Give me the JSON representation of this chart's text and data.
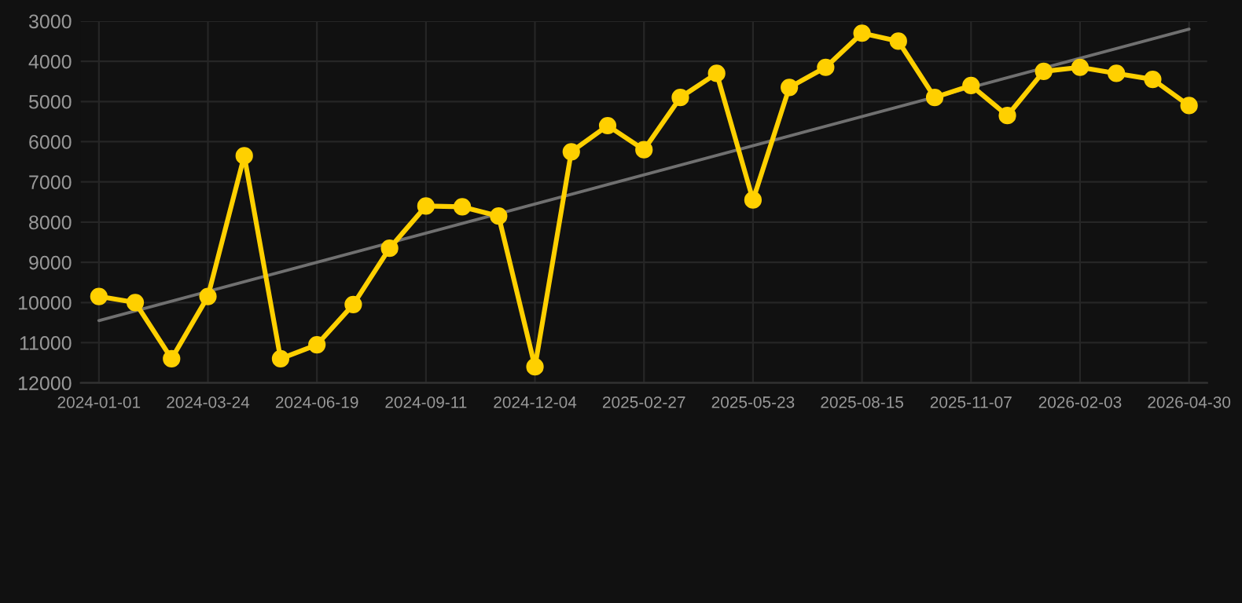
{
  "chart_data": {
    "type": "line",
    "categories": [
      "2024-01-01",
      null,
      null,
      "2024-03-24",
      null,
      null,
      "2024-06-19",
      null,
      null,
      "2024-09-11",
      null,
      null,
      "2024-12-04",
      null,
      null,
      "2025-02-27",
      null,
      null,
      "2025-05-23",
      null,
      null,
      "2025-08-15",
      null,
      null,
      "2025-11-07",
      null,
      null,
      "2026-02-03",
      null,
      null,
      "2026-04-30"
    ],
    "series": [
      {
        "color": "#ffd000",
        "marker": "circle",
        "values": [
          9850,
          10000,
          11400,
          9850,
          6350,
          11400,
          11050,
          10050,
          8650,
          7600,
          7620,
          7850,
          11600,
          6250,
          5600,
          6200,
          4900,
          4300,
          7450,
          4650,
          4150,
          3300,
          3500,
          4900,
          4600,
          5350,
          4250,
          4150,
          4300,
          4450,
          5100
        ]
      },
      {
        "type": "line",
        "color": "#707070",
        "marker": "none",
        "values": [
          10450,
          null,
          null,
          null,
          null,
          null,
          null,
          null,
          null,
          null,
          null,
          null,
          null,
          null,
          null,
          null,
          null,
          null,
          null,
          null,
          null,
          null,
          null,
          null,
          null,
          null,
          null,
          null,
          null,
          null,
          3200
        ]
      }
    ],
    "ylim": [
      12000,
      3000
    ],
    "yticks": [
      3000,
      4000,
      5000,
      6000,
      7000,
      8000,
      9000,
      10000,
      11000,
      12000
    ],
    "grid": true
  }
}
